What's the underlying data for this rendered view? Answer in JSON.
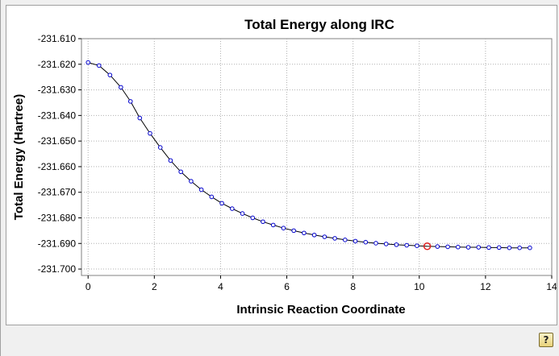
{
  "window": {
    "help_icon": "question-mark-icon",
    "help_glyph": "?"
  },
  "chart_data": {
    "type": "line",
    "title": "Total Energy along IRC",
    "xlabel": "Intrinsic Reaction Coordinate",
    "ylabel": "Total Energy (Hartree)",
    "xlim": [
      -0.2,
      14
    ],
    "ylim": [
      -231.7025,
      -231.61
    ],
    "xticks": [
      0,
      2,
      4,
      6,
      8,
      10,
      12,
      14
    ],
    "yticks": [
      -231.61,
      -231.62,
      -231.63,
      -231.64,
      -231.65,
      -231.66,
      -231.67,
      -231.68,
      -231.69,
      -231.7
    ],
    "ytick_labels": [
      "-231.610",
      "-231.620",
      "-231.630",
      "-231.640",
      "-231.650",
      "-231.660",
      "-231.670",
      "-231.680",
      "-231.690",
      "-231.700"
    ],
    "grid": true,
    "grid_style": "dotted",
    "line_color": "#000000",
    "marker_color": "#0000cc",
    "highlight_color": "#e02020",
    "highlight_index": 33,
    "series": [
      {
        "x": [
          0.0,
          0.33,
          0.66,
          0.99,
          1.28,
          1.56,
          1.87,
          2.18,
          2.49,
          2.8,
          3.11,
          3.42,
          3.73,
          4.04,
          4.35,
          4.66,
          4.97,
          5.28,
          5.59,
          5.9,
          6.21,
          6.52,
          6.83,
          7.14,
          7.45,
          7.76,
          8.07,
          8.38,
          8.69,
          9.0,
          9.31,
          9.62,
          9.93,
          10.24,
          10.55,
          10.86,
          11.17,
          11.48,
          11.79,
          12.1,
          12.41,
          12.72,
          13.03,
          13.34
        ],
        "y": [
          -231.6193,
          -231.6205,
          -231.6242,
          -231.629,
          -231.6345,
          -231.641,
          -231.647,
          -231.6525,
          -231.6576,
          -231.662,
          -231.6657,
          -231.669,
          -231.6718,
          -231.6743,
          -231.6764,
          -231.6783,
          -231.68,
          -231.6815,
          -231.6828,
          -231.684,
          -231.685,
          -231.6859,
          -231.6867,
          -231.6874,
          -231.688,
          -231.6886,
          -231.6891,
          -231.6895,
          -231.6899,
          -231.6902,
          -231.6905,
          -231.6907,
          -231.6909,
          -231.6911,
          -231.6912,
          -231.6913,
          -231.6914,
          -231.6915,
          -231.6915,
          -231.6916,
          -231.6916,
          -231.6917,
          -231.6917,
          -231.6917
        ]
      }
    ]
  }
}
